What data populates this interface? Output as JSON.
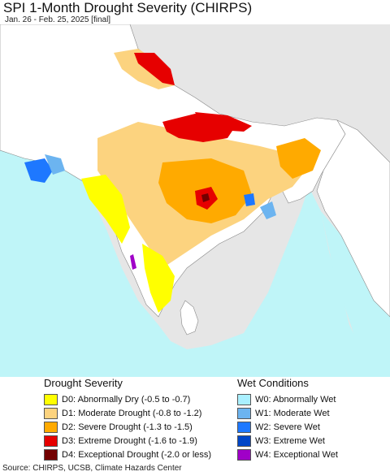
{
  "title": "SPI 1-Month Drought Severity (CHIRPS)",
  "subtitle": "Jan. 26 - Feb. 25, 2025 [final]",
  "map": {
    "ocean_color": "#bff5f8",
    "land_color": "#ffffff",
    "outside_color": "#e6e6e6"
  },
  "legend": {
    "drought": {
      "heading": "Drought Severity",
      "items": [
        {
          "code": "D0:",
          "label": "Abnormally Dry (-0.5 to -0.7)",
          "color": "#ffff00"
        },
        {
          "code": "D1:",
          "label": "Moderate Drought (-0.8 to -1.2)",
          "color": "#fcd37f"
        },
        {
          "code": "D2:",
          "label": "Severe Drought (-1.3 to -1.5)",
          "color": "#ffaa00"
        },
        {
          "code": "D3:",
          "label": "Extreme Drought (-1.6 to -1.9)",
          "color": "#e60000"
        },
        {
          "code": "D4:",
          "label": "Exceptional Drought (-2.0 or less)",
          "color": "#730000"
        }
      ]
    },
    "wet": {
      "heading": "Wet Conditions",
      "items": [
        {
          "code": "W0:",
          "label": "Abnormally Wet",
          "color": "#aaf0ff"
        },
        {
          "code": "W1:",
          "label": "Moderate Wet",
          "color": "#6cb4f0"
        },
        {
          "code": "W2:",
          "label": "Severe Wet",
          "color": "#1e78ff"
        },
        {
          "code": "W3:",
          "label": "Extreme Wet",
          "color": "#0046c8"
        },
        {
          "code": "W4:",
          "label": "Exceptional Wet",
          "color": "#a000c8"
        }
      ]
    }
  },
  "source": "Source: CHIRPS, UCSB, Climate Hazards Center"
}
